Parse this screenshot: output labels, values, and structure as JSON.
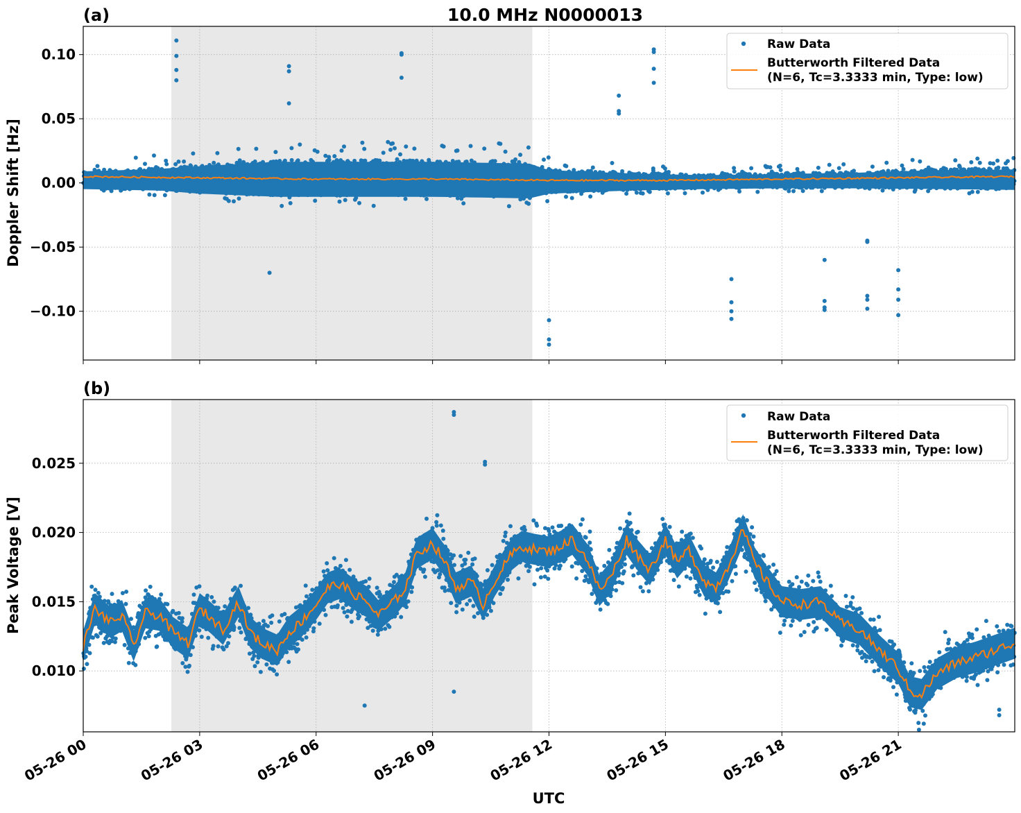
{
  "figure": {
    "title": "10.0 MHz N0000013",
    "xlabel": "UTC",
    "x_tick_labels": [
      "05-26 00",
      "05-26 03",
      "05-26 06",
      "05-26 09",
      "05-26 12",
      "05-26 15",
      "05-26 18",
      "05-26 21"
    ],
    "colors": {
      "raw": "#1f77b4",
      "filtered": "#ff7f0e",
      "shade": "#e8e8e8",
      "grid": "#b0b0b0"
    },
    "legend": {
      "raw_label": "Raw Data",
      "filtered_label_line1": "Butterworth Filtered Data",
      "filtered_label_line2": "(N=6, Tc=3.3333 min, Type: low)"
    }
  },
  "chart_data": [
    {
      "panel": "(a)",
      "type": "scatter",
      "title": "10.0 MHz N0000013",
      "xlabel": "UTC",
      "ylabel": "Doppler Shift [Hz]",
      "x_range_hours": [
        0,
        24
      ],
      "ylim": [
        -0.138,
        0.122
      ],
      "y_ticks": [
        0.1,
        0.05,
        0.0,
        -0.05,
        -0.1
      ],
      "y_tick_labels": [
        "0.10",
        "0.05",
        "0.00",
        "−0.05",
        "−0.10"
      ],
      "shaded_interval_hours": [
        2.27,
        11.57
      ],
      "grid": true,
      "legend_placement": "top-right",
      "series": [
        {
          "name": "Raw Data",
          "kind": "points",
          "envelope_hours": [
            0,
            2,
            3,
            5,
            7,
            9,
            11.5,
            12,
            14,
            16,
            18,
            20,
            22,
            24
          ],
          "envelope_low": [
            -0.008,
            -0.01,
            -0.014,
            -0.018,
            -0.018,
            -0.018,
            -0.02,
            -0.014,
            -0.01,
            -0.008,
            -0.007,
            -0.007,
            -0.008,
            -0.009
          ],
          "envelope_high": [
            0.018,
            0.022,
            0.026,
            0.033,
            0.033,
            0.033,
            0.03,
            0.02,
            0.015,
            0.012,
            0.014,
            0.016,
            0.02,
            0.021
          ],
          "outliers": [
            [
              2.4,
              0.111
            ],
            [
              2.4,
              0.099
            ],
            [
              2.4,
              0.088
            ],
            [
              2.4,
              0.08
            ],
            [
              4.8,
              -0.07
            ],
            [
              5.3,
              0.091
            ],
            [
              5.3,
              0.087
            ],
            [
              5.3,
              0.062
            ],
            [
              8.2,
              0.101
            ],
            [
              8.2,
              0.1
            ],
            [
              8.2,
              0.082
            ],
            [
              12.0,
              -0.107
            ],
            [
              12.0,
              -0.122
            ],
            [
              12.0,
              -0.126
            ],
            [
              13.8,
              0.068
            ],
            [
              13.8,
              0.056
            ],
            [
              13.8,
              0.054
            ],
            [
              14.7,
              0.104
            ],
            [
              14.7,
              0.102
            ],
            [
              14.7,
              0.089
            ],
            [
              14.7,
              0.078
            ],
            [
              16.7,
              -0.075
            ],
            [
              16.7,
              -0.093
            ],
            [
              16.7,
              -0.1
            ],
            [
              16.7,
              -0.106
            ],
            [
              19.1,
              -0.06
            ],
            [
              19.1,
              -0.092
            ],
            [
              19.1,
              -0.097
            ],
            [
              19.1,
              -0.099
            ],
            [
              20.2,
              -0.045
            ],
            [
              20.2,
              -0.046
            ],
            [
              20.2,
              -0.088
            ],
            [
              20.2,
              -0.091
            ],
            [
              20.2,
              -0.098
            ],
            [
              21.0,
              -0.068
            ],
            [
              21.0,
              -0.083
            ],
            [
              21.0,
              -0.091
            ],
            [
              21.0,
              -0.103
            ]
          ]
        },
        {
          "name": "Butterworth Filtered Data (N=6, Tc=3.3333 min, Type: low)",
          "kind": "line",
          "x_hours": [
            0,
            3,
            6,
            9,
            12,
            15,
            18,
            21,
            24
          ],
          "y": [
            0.005,
            0.004,
            0.003,
            0.003,
            0.002,
            0.002,
            0.003,
            0.004,
            0.005
          ]
        }
      ]
    },
    {
      "panel": "(b)",
      "type": "scatter",
      "xlabel": "UTC",
      "ylabel": "Peak Voltage [V]",
      "x_range_hours": [
        0,
        24
      ],
      "ylim": [
        0.0056,
        0.0296
      ],
      "y_ticks": [
        0.025,
        0.02,
        0.015,
        0.01
      ],
      "y_tick_labels": [
        "0.025",
        "0.020",
        "0.015",
        "0.010"
      ],
      "shaded_interval_hours": [
        2.27,
        11.57
      ],
      "grid": true,
      "legend_placement": "top-right",
      "series": [
        {
          "name": "Raw Data",
          "kind": "points",
          "spread": 0.0014,
          "outliers": [
            [
              9.55,
              0.0287
            ],
            [
              9.55,
              0.0285
            ],
            [
              9.55,
              0.0085
            ],
            [
              7.25,
              0.0075
            ],
            [
              10.35,
              0.0251
            ],
            [
              10.35,
              0.0249
            ],
            [
              23.6,
              0.0068
            ],
            [
              23.6,
              0.0072
            ]
          ]
        },
        {
          "name": "Butterworth Filtered Data (N=6, Tc=3.3333 min, Type: low)",
          "kind": "line",
          "x_hours": [
            0,
            0.3,
            0.7,
            1.0,
            1.3,
            1.6,
            2.0,
            2.3,
            2.7,
            3.0,
            3.3,
            3.6,
            4.0,
            4.3,
            4.6,
            5.0,
            5.3,
            5.6,
            6.0,
            6.3,
            6.6,
            7.0,
            7.3,
            7.6,
            8.0,
            8.3,
            8.6,
            9.0,
            9.3,
            9.6,
            10.0,
            10.3,
            10.6,
            11.0,
            11.3,
            11.6,
            12.0,
            12.3,
            12.6,
            13.0,
            13.3,
            13.6,
            14.0,
            14.3,
            14.6,
            15.0,
            15.3,
            15.6,
            16.0,
            16.3,
            16.6,
            17.0,
            17.3,
            17.6,
            18.0,
            18.5,
            19.0,
            19.5,
            20.0,
            20.5,
            21.0,
            21.3,
            21.6,
            22.0,
            22.5,
            23.0,
            23.5,
            24.0
          ],
          "y": [
            0.0118,
            0.0145,
            0.0135,
            0.014,
            0.0118,
            0.0142,
            0.014,
            0.0128,
            0.012,
            0.0145,
            0.0138,
            0.013,
            0.015,
            0.0128,
            0.012,
            0.0115,
            0.0128,
            0.0135,
            0.0148,
            0.016,
            0.0163,
            0.0155,
            0.015,
            0.014,
            0.015,
            0.016,
            0.0185,
            0.0192,
            0.018,
            0.016,
            0.0165,
            0.0148,
            0.0165,
            0.0183,
            0.019,
            0.0188,
            0.0186,
            0.019,
            0.0195,
            0.018,
            0.0158,
            0.0168,
            0.0195,
            0.0183,
            0.0173,
            0.0195,
            0.0178,
            0.0188,
            0.0165,
            0.016,
            0.0175,
            0.0202,
            0.0178,
            0.0165,
            0.015,
            0.0148,
            0.015,
            0.0135,
            0.013,
            0.0115,
            0.0102,
            0.0085,
            0.0083,
            0.0098,
            0.0106,
            0.011,
            0.0115,
            0.012
          ]
        }
      ]
    }
  ]
}
